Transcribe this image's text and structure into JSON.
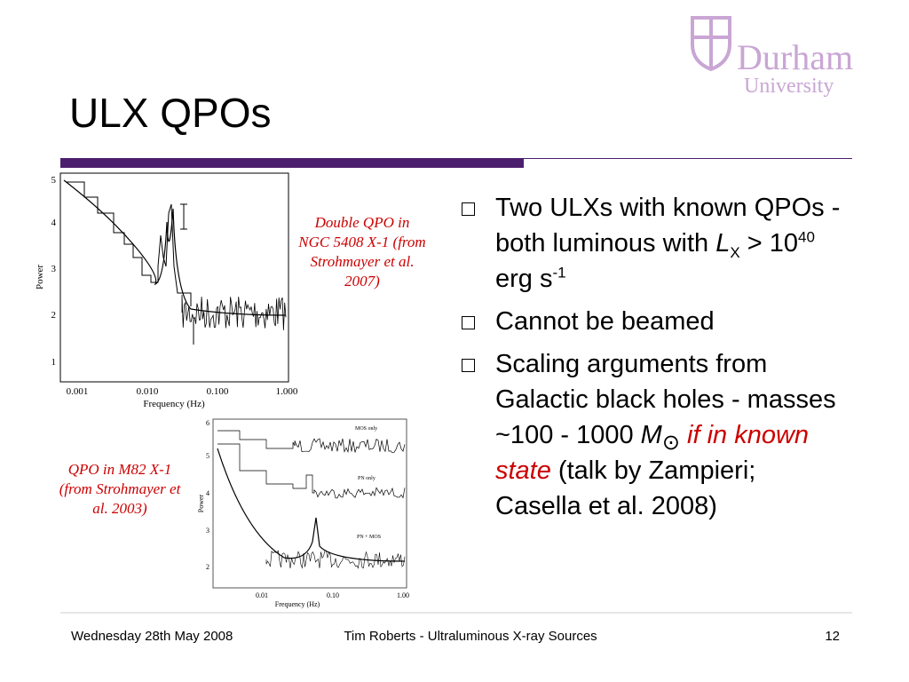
{
  "logo": {
    "name": "Durham",
    "sub": "University"
  },
  "title": "ULX QPOs",
  "figures": [
    {
      "caption": "Double QPO in NGC 5408 X-1 (from Strohmayer et al. 2007)",
      "y_label": "Power",
      "x_label": "Frequency (Hz)",
      "yticks": [
        "5",
        "4",
        "3",
        "2",
        "1"
      ],
      "xticks": [
        "0.001",
        "0.010",
        "0.100",
        "1.000"
      ]
    },
    {
      "caption": "QPO in M82 X-1 (from Strohmayer et al. 2003)",
      "y_label": "Power",
      "x_label": "Frequency (Hz)",
      "yticks": [
        "6",
        "5",
        "4",
        "3",
        "2"
      ],
      "xticks": [
        "0.01",
        "0.10",
        "1.00"
      ],
      "annotations": [
        "MOS only",
        "PN only",
        "PN + MOS"
      ]
    }
  ],
  "bullets": [
    {
      "pre": "Two ULXs with known QPOs - both luminous with ",
      "L": "L",
      "sub": "X",
      "mid": " > 10",
      "exp": "40",
      "unit": " erg s",
      "exp2": "-1"
    },
    {
      "text": "Cannot be beamed"
    },
    {
      "pre": "Scaling arguments from Galactic black holes - masses ~100 - 1000 ",
      "M": "M",
      "sun": "⊙",
      "red": "if in known state",
      "post": " (talk by Zampieri; Casella et al. 2008)"
    }
  ],
  "footer": {
    "date": "Wednesday 28th May 2008",
    "center": "Tim Roberts - Ultraluminous X-ray Sources",
    "page": "12"
  }
}
